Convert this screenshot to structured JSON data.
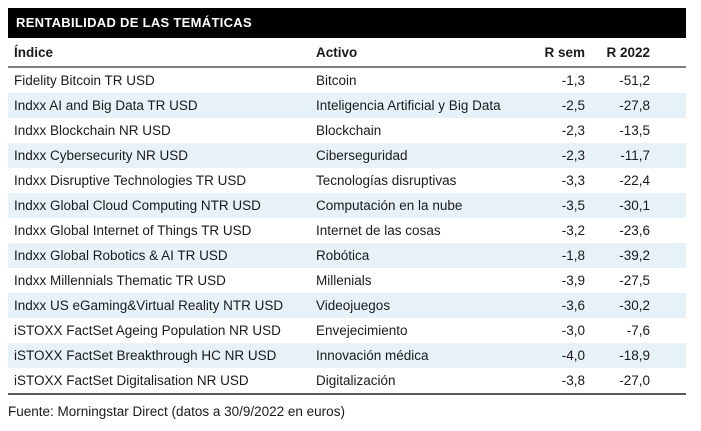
{
  "title": "RENTABILIDAD DE LAS TEMÁTICAS",
  "table": {
    "columns": [
      "Índice",
      "Activo",
      "R sem",
      "R 2022"
    ],
    "rows": [
      [
        "Fidelity Bitcoin TR USD",
        "Bitcoin",
        "-1,3",
        "-51,2"
      ],
      [
        "Indxx AI and Big Data TR USD",
        "Inteligencia Artificial y Big Data",
        "-2,5",
        "-27,8"
      ],
      [
        "Indxx Blockchain NR USD",
        "Blockchain",
        "-2,3",
        "-13,5"
      ],
      [
        "Indxx Cybersecurity NR USD",
        "Ciberseguridad",
        "-2,3",
        "-11,7"
      ],
      [
        "Indxx Disruptive Technologies TR USD",
        "Tecnologías disruptivas",
        "-3,3",
        "-22,4"
      ],
      [
        "Indxx Global Cloud Computing NTR USD",
        "Computación en la nube",
        "-3,5",
        "-30,1"
      ],
      [
        "Indxx Global Internet of Things TR USD",
        "Internet de las cosas",
        "-3,2",
        "-23,6"
      ],
      [
        "Indxx Global Robotics & AI TR USD",
        "Robótica",
        "-1,8",
        "-39,2"
      ],
      [
        "Indxx Millennials Thematic TR USD",
        "Millenials",
        "-3,9",
        "-27,5"
      ],
      [
        "Indxx US eGaming&Virtual Reality NTR USD",
        "Videojuegos",
        "-3,6",
        "-30,2"
      ],
      [
        "iSTOXX FactSet Ageing Population NR USD",
        "Envejecimiento",
        "-3,0",
        "-7,6"
      ],
      [
        "iSTOXX FactSet Breakthrough HC NR USD",
        "Innovación médica",
        "-4,0",
        "-18,9"
      ],
      [
        "iSTOXX FactSet Digitalisation NR USD",
        "Digitalización",
        "-3,8",
        "-27,0"
      ]
    ]
  },
  "footer_text": "Fuente: Morningstar Direct (datos a 30/9/2022 en euros)",
  "colors": {
    "title_bar_bg": "#000000",
    "title_bar_text": "#ffffff",
    "row_stripe": "#e7f2f8",
    "header_rule": "#808080",
    "bottom_rule": "#595959",
    "body_text": "#1a1a1a"
  }
}
